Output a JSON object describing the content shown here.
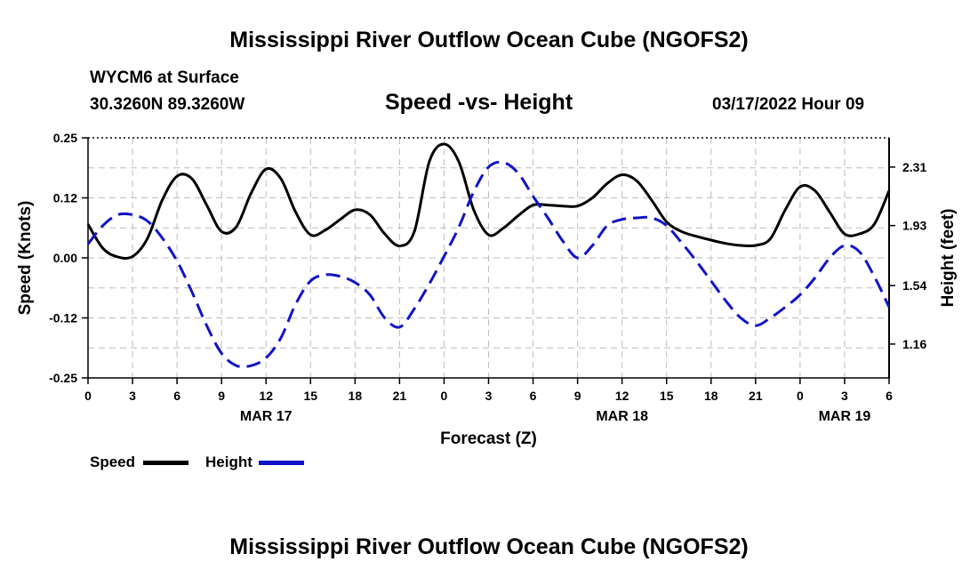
{
  "page": {
    "title": "Mississippi River Outflow Ocean Cube (NGOFS2)",
    "station": "WYCM6 at Surface",
    "coords": "30.3260N  89.3260W",
    "plot_title": "Speed -vs- Height",
    "datetime": "03/17/2022 Hour 09",
    "footer_title": "Mississippi River Outflow Ocean Cube (NGOFS2)"
  },
  "legend": {
    "speed_label": "Speed",
    "height_label": "Height",
    "speed_color": "#000000",
    "height_color": "#1212c8"
  },
  "chart_data": {
    "type": "line",
    "xlabel": "Forecast (Z)",
    "ylabel": "Speed (Knots)",
    "y2label": "Height (feet)",
    "x_range_hours": [
      0,
      54
    ],
    "xticks": [
      {
        "h": 0,
        "label": "0"
      },
      {
        "h": 3,
        "label": "3"
      },
      {
        "h": 6,
        "label": "6"
      },
      {
        "h": 9,
        "label": "9"
      },
      {
        "h": 12,
        "label": "12"
      },
      {
        "h": 15,
        "label": "15"
      },
      {
        "h": 18,
        "label": "18"
      },
      {
        "h": 21,
        "label": "21"
      },
      {
        "h": 24,
        "label": "0"
      },
      {
        "h": 27,
        "label": "3"
      },
      {
        "h": 30,
        "label": "6"
      },
      {
        "h": 33,
        "label": "9"
      },
      {
        "h": 36,
        "label": "12"
      },
      {
        "h": 39,
        "label": "15"
      },
      {
        "h": 42,
        "label": "18"
      },
      {
        "h": 45,
        "label": "21"
      },
      {
        "h": 48,
        "label": "0"
      },
      {
        "h": 51,
        "label": "3"
      },
      {
        "h": 54,
        "label": "6"
      }
    ],
    "day_labels": [
      {
        "h": 12,
        "label": "MAR 17"
      },
      {
        "h": 36,
        "label": "MAR 18"
      },
      {
        "h": 51,
        "label": "MAR 19"
      }
    ],
    "ylim": [
      -0.25,
      0.25
    ],
    "yticks": [
      {
        "v": 0.25,
        "label": "0.25"
      },
      {
        "v": 0.125,
        "label": "0.12"
      },
      {
        "v": 0,
        "label": "0.00"
      },
      {
        "v": -0.125,
        "label": "-0.12"
      },
      {
        "v": -0.25,
        "label": "-0.25"
      }
    ],
    "y2lim": [
      0.94,
      2.5
    ],
    "y2ticks": [
      {
        "v": 2.31,
        "label": "2.31"
      },
      {
        "v": 1.93,
        "label": "1.93"
      },
      {
        "v": 1.54,
        "label": "1.54"
      },
      {
        "v": 1.16,
        "label": "1.16"
      }
    ],
    "series": [
      {
        "name": "Speed",
        "axis": "left",
        "style": "solid",
        "color": "#000000",
        "points": [
          [
            0,
            0.07
          ],
          [
            1,
            0.02
          ],
          [
            2,
            0.002
          ],
          [
            3,
            0.003
          ],
          [
            4,
            0.04
          ],
          [
            5,
            0.12
          ],
          [
            6,
            0.17
          ],
          [
            7,
            0.165
          ],
          [
            8,
            0.11
          ],
          [
            9,
            0.055
          ],
          [
            10,
            0.065
          ],
          [
            11,
            0.135
          ],
          [
            12,
            0.185
          ],
          [
            13,
            0.165
          ],
          [
            14,
            0.095
          ],
          [
            15,
            0.048
          ],
          [
            16,
            0.058
          ],
          [
            17,
            0.08
          ],
          [
            18,
            0.1
          ],
          [
            19,
            0.09
          ],
          [
            20,
            0.05
          ],
          [
            21,
            0.025
          ],
          [
            22,
            0.055
          ],
          [
            23,
            0.2
          ],
          [
            24,
            0.237
          ],
          [
            25,
            0.2
          ],
          [
            26,
            0.1
          ],
          [
            27,
            0.048
          ],
          [
            28,
            0.062
          ],
          [
            29,
            0.088
          ],
          [
            30,
            0.11
          ],
          [
            31,
            0.11
          ],
          [
            32,
            0.108
          ],
          [
            33,
            0.108
          ],
          [
            34,
            0.125
          ],
          [
            35,
            0.155
          ],
          [
            36,
            0.173
          ],
          [
            37,
            0.16
          ],
          [
            38,
            0.12
          ],
          [
            39,
            0.075
          ],
          [
            40,
            0.055
          ],
          [
            41,
            0.045
          ],
          [
            42,
            0.037
          ],
          [
            43,
            0.03
          ],
          [
            44,
            0.026
          ],
          [
            45,
            0.026
          ],
          [
            46,
            0.04
          ],
          [
            47,
            0.1
          ],
          [
            48,
            0.148
          ],
          [
            49,
            0.14
          ],
          [
            50,
            0.095
          ],
          [
            51,
            0.05
          ],
          [
            52,
            0.05
          ],
          [
            53,
            0.07
          ],
          [
            54,
            0.14
          ]
        ]
      },
      {
        "name": "Height",
        "axis": "right",
        "style": "dashed",
        "color": "#1212c8",
        "points": [
          [
            0,
            1.81
          ],
          [
            1,
            1.93
          ],
          [
            2,
            2.0
          ],
          [
            3,
            2.0
          ],
          [
            4,
            1.96
          ],
          [
            5,
            1.85
          ],
          [
            6,
            1.7
          ],
          [
            7,
            1.5
          ],
          [
            8,
            1.28
          ],
          [
            9,
            1.1
          ],
          [
            10,
            1.02
          ],
          [
            11,
            1.02
          ],
          [
            12,
            1.07
          ],
          [
            13,
            1.2
          ],
          [
            14,
            1.42
          ],
          [
            15,
            1.57
          ],
          [
            16,
            1.61
          ],
          [
            17,
            1.6
          ],
          [
            18,
            1.56
          ],
          [
            19,
            1.48
          ],
          [
            20,
            1.33
          ],
          [
            21,
            1.27
          ],
          [
            22,
            1.39
          ],
          [
            23,
            1.55
          ],
          [
            24,
            1.73
          ],
          [
            25,
            1.92
          ],
          [
            26,
            2.15
          ],
          [
            27,
            2.31
          ],
          [
            28,
            2.34
          ],
          [
            29,
            2.27
          ],
          [
            30,
            2.12
          ],
          [
            31,
            1.98
          ],
          [
            32,
            1.83
          ],
          [
            33,
            1.72
          ],
          [
            34,
            1.8
          ],
          [
            35,
            1.93
          ],
          [
            36,
            1.97
          ],
          [
            37,
            1.98
          ],
          [
            38,
            1.98
          ],
          [
            39,
            1.93
          ],
          [
            40,
            1.82
          ],
          [
            41,
            1.7
          ],
          [
            42,
            1.57
          ],
          [
            43,
            1.44
          ],
          [
            44,
            1.33
          ],
          [
            45,
            1.28
          ],
          [
            46,
            1.33
          ],
          [
            47,
            1.4
          ],
          [
            48,
            1.48
          ],
          [
            49,
            1.59
          ],
          [
            50,
            1.72
          ],
          [
            51,
            1.8
          ],
          [
            52,
            1.76
          ],
          [
            53,
            1.6
          ],
          [
            54,
            1.4
          ]
        ]
      }
    ]
  }
}
